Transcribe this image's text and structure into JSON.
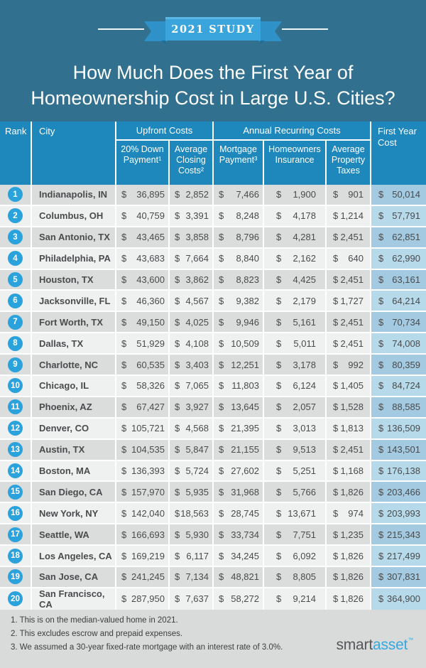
{
  "banner": {
    "label": "2021 STUDY"
  },
  "title": {
    "line1": "How Much Does the First Year of",
    "line2": "Homeownership Cost in Large U.S. Cities?"
  },
  "table": {
    "currency": "$",
    "headers": {
      "rank": "Rank",
      "city": "City",
      "upfront_group": "Upfront Costs",
      "annual_group": "Annual Recurring Costs",
      "first_year": "First Year Cost",
      "down_payment": "20% Down Payment¹",
      "closing_costs": "Average Closing Costs²",
      "mortgage": "Mortgage Payment³",
      "insurance": "Homeowners Insurance",
      "property_taxes": "Average Property Taxes"
    },
    "rows": [
      {
        "rank": "1",
        "city": "Indianapolis, IN",
        "down_payment": "36,895",
        "closing_costs": "2,852",
        "mortgage": "7,466",
        "insurance": "1,900",
        "property_taxes": "901",
        "first_year": "50,014"
      },
      {
        "rank": "2",
        "city": "Columbus, OH",
        "down_payment": "40,759",
        "closing_costs": "3,391",
        "mortgage": "8,248",
        "insurance": "4,178",
        "property_taxes": "1,214",
        "first_year": "57,791"
      },
      {
        "rank": "3",
        "city": "San Antonio, TX",
        "down_payment": "43,465",
        "closing_costs": "3,858",
        "mortgage": "8,796",
        "insurance": "4,281",
        "property_taxes": "2,451",
        "first_year": "62,851"
      },
      {
        "rank": "4",
        "city": "Philadelphia, PA",
        "down_payment": "43,683",
        "closing_costs": "7,664",
        "mortgage": "8,840",
        "insurance": "2,162",
        "property_taxes": "640",
        "first_year": "62,990"
      },
      {
        "rank": "5",
        "city": "Houston, TX",
        "down_payment": "43,600",
        "closing_costs": "3,862",
        "mortgage": "8,823",
        "insurance": "4,425",
        "property_taxes": "2,451",
        "first_year": "63,161"
      },
      {
        "rank": "6",
        "city": "Jacksonville, FL",
        "down_payment": "46,360",
        "closing_costs": "4,567",
        "mortgage": "9,382",
        "insurance": "2,179",
        "property_taxes": "1,727",
        "first_year": "64,214"
      },
      {
        "rank": "7",
        "city": "Fort Worth, TX",
        "down_payment": "49,150",
        "closing_costs": "4,025",
        "mortgage": "9,946",
        "insurance": "5,161",
        "property_taxes": "2,451",
        "first_year": "70,734"
      },
      {
        "rank": "8",
        "city": "Dallas, TX",
        "down_payment": "51,929",
        "closing_costs": "4,108",
        "mortgage": "10,509",
        "insurance": "5,011",
        "property_taxes": "2,451",
        "first_year": "74,008"
      },
      {
        "rank": "9",
        "city": "Charlotte, NC",
        "down_payment": "60,535",
        "closing_costs": "3,403",
        "mortgage": "12,251",
        "insurance": "3,178",
        "property_taxes": "992",
        "first_year": "80,359"
      },
      {
        "rank": "10",
        "city": "Chicago, IL",
        "down_payment": "58,326",
        "closing_costs": "7,065",
        "mortgage": "11,803",
        "insurance": "6,124",
        "property_taxes": "1,405",
        "first_year": "84,724"
      },
      {
        "rank": "11",
        "city": "Phoenix, AZ",
        "down_payment": "67,427",
        "closing_costs": "3,927",
        "mortgage": "13,645",
        "insurance": "2,057",
        "property_taxes": "1,528",
        "first_year": "88,585"
      },
      {
        "rank": "12",
        "city": "Denver, CO",
        "down_payment": "105,721",
        "closing_costs": "4,568",
        "mortgage": "21,395",
        "insurance": "3,013",
        "property_taxes": "1,813",
        "first_year": "136,509"
      },
      {
        "rank": "13",
        "city": "Austin, TX",
        "down_payment": "104,535",
        "closing_costs": "5,847",
        "mortgage": "21,155",
        "insurance": "9,513",
        "property_taxes": "2,451",
        "first_year": "143,501"
      },
      {
        "rank": "14",
        "city": "Boston, MA",
        "down_payment": "136,393",
        "closing_costs": "5,724",
        "mortgage": "27,602",
        "insurance": "5,251",
        "property_taxes": "1,168",
        "first_year": "176,138"
      },
      {
        "rank": "15",
        "city": "San Diego, CA",
        "down_payment": "157,970",
        "closing_costs": "5,935",
        "mortgage": "31,968",
        "insurance": "5,766",
        "property_taxes": "1,826",
        "first_year": "203,466"
      },
      {
        "rank": "16",
        "city": "New York, NY",
        "down_payment": "142,040",
        "closing_costs": "18,563",
        "mortgage": "28,745",
        "insurance": "13,671",
        "property_taxes": "974",
        "first_year": "203,993"
      },
      {
        "rank": "17",
        "city": "Seattle, WA",
        "down_payment": "166,693",
        "closing_costs": "5,930",
        "mortgage": "33,734",
        "insurance": "7,751",
        "property_taxes": "1,235",
        "first_year": "215,343"
      },
      {
        "rank": "18",
        "city": "Los Angeles, CA",
        "down_payment": "169,219",
        "closing_costs": "6,117",
        "mortgage": "34,245",
        "insurance": "6,092",
        "property_taxes": "1,826",
        "first_year": "217,499"
      },
      {
        "rank": "19",
        "city": "San Jose, CA",
        "down_payment": "241,245",
        "closing_costs": "7,134",
        "mortgage": "48,821",
        "insurance": "8,805",
        "property_taxes": "1,826",
        "first_year": "307,831"
      },
      {
        "rank": "20",
        "city": "San Francisco, CA",
        "down_payment": "287,950",
        "closing_costs": "7,637",
        "mortgage": "58,272",
        "insurance": "9,214",
        "property_taxes": "1,826",
        "first_year": "364,900"
      }
    ]
  },
  "footnotes": [
    "1. This is on the median-valued home in 2021.",
    "2. This excludes escrow and prepaid expenses.",
    "3. We assumed a 30-year fixed-rate mortgage with an interest rate of 3.0%."
  ],
  "logo": {
    "first": "smart",
    "second": "asset",
    "tm": "™"
  },
  "colors": {
    "background": "#31708F",
    "header_blue": "#1E87BC",
    "ribbon_band": "#3AA4DC",
    "ribbon_tail": "#2E92C8",
    "rank_circle": "#2AA2DC",
    "row_dark": "#DBDCDC",
    "row_light": "#EFF0F0",
    "first_year_dark": "#A3CAE0",
    "first_year_light": "#B7DAEB",
    "footer_bg": "#D9DADA",
    "logo_gray": "#55565A",
    "logo_blue": "#35A8E0"
  },
  "chart_data": {
    "type": "table",
    "title": "How Much Does the First Year of Homeownership Cost in Large U.S. Cities?",
    "subtitle": "2021 STUDY",
    "column_groups": [
      {
        "label": "Upfront Costs",
        "columns": [
          "20% Down Payment",
          "Average Closing Costs"
        ]
      },
      {
        "label": "Annual Recurring Costs",
        "columns": [
          "Mortgage Payment",
          "Homeowners Insurance",
          "Average Property Taxes"
        ]
      }
    ],
    "columns": [
      "Rank",
      "City",
      "20% Down Payment",
      "Average Closing Costs",
      "Mortgage Payment",
      "Homeowners Insurance",
      "Average Property Taxes",
      "First Year Cost"
    ],
    "rows": [
      [
        1,
        "Indianapolis, IN",
        36895,
        2852,
        7466,
        1900,
        901,
        50014
      ],
      [
        2,
        "Columbus, OH",
        40759,
        3391,
        8248,
        4178,
        1214,
        57791
      ],
      [
        3,
        "San Antonio, TX",
        43465,
        3858,
        8796,
        4281,
        2451,
        62851
      ],
      [
        4,
        "Philadelphia, PA",
        43683,
        7664,
        8840,
        2162,
        640,
        62990
      ],
      [
        5,
        "Houston, TX",
        43600,
        3862,
        8823,
        4425,
        2451,
        63161
      ],
      [
        6,
        "Jacksonville, FL",
        46360,
        4567,
        9382,
        2179,
        1727,
        64214
      ],
      [
        7,
        "Fort Worth, TX",
        49150,
        4025,
        9946,
        5161,
        2451,
        70734
      ],
      [
        8,
        "Dallas, TX",
        51929,
        4108,
        10509,
        5011,
        2451,
        74008
      ],
      [
        9,
        "Charlotte, NC",
        60535,
        3403,
        12251,
        3178,
        992,
        80359
      ],
      [
        10,
        "Chicago, IL",
        58326,
        7065,
        11803,
        6124,
        1405,
        84724
      ],
      [
        11,
        "Phoenix, AZ",
        67427,
        3927,
        13645,
        2057,
        1528,
        88585
      ],
      [
        12,
        "Denver, CO",
        105721,
        4568,
        21395,
        3013,
        1813,
        136509
      ],
      [
        13,
        "Austin, TX",
        104535,
        5847,
        21155,
        9513,
        2451,
        143501
      ],
      [
        14,
        "Boston, MA",
        136393,
        5724,
        27602,
        5251,
        1168,
        176138
      ],
      [
        15,
        "San Diego, CA",
        157970,
        5935,
        31968,
        5766,
        1826,
        203466
      ],
      [
        16,
        "New York, NY",
        142040,
        18563,
        28745,
        13671,
        974,
        203993
      ],
      [
        17,
        "Seattle, WA",
        166693,
        5930,
        33734,
        7751,
        1235,
        215343
      ],
      [
        18,
        "Los Angeles, CA",
        169219,
        6117,
        34245,
        6092,
        1826,
        217499
      ],
      [
        19,
        "San Jose, CA",
        241245,
        7134,
        48821,
        8805,
        1826,
        307831
      ],
      [
        20,
        "San Francisco, CA",
        287950,
        7637,
        58272,
        9214,
        1826,
        364900
      ]
    ],
    "units": "USD",
    "footnotes": [
      "1. This is on the median-valued home in 2021.",
      "2. This excludes escrow and prepaid expenses.",
      "3. We assumed a 30-year fixed-rate mortgage with an interest rate of 3.0%."
    ]
  }
}
